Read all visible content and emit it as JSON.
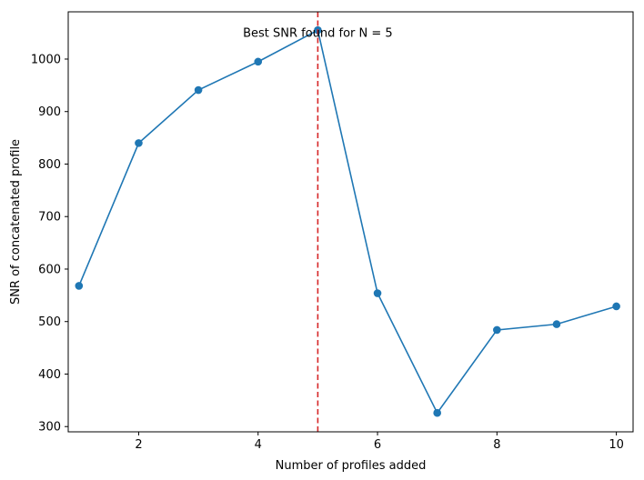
{
  "chart_data": {
    "type": "line",
    "x": [
      1,
      2,
      3,
      4,
      5,
      6,
      7,
      8,
      9,
      10
    ],
    "series": [
      {
        "values": [
          568,
          840,
          941,
          995,
          1055,
          554,
          326,
          484,
          495,
          529
        ],
        "color": "#1f77b4",
        "marker": "circle"
      }
    ],
    "xlabel": "Number of profiles added",
    "ylabel": "SNR of concatenated profile",
    "xlim": [
      0.82,
      10.28
    ],
    "ylim": [
      290,
      1090
    ],
    "xticks": [
      2,
      4,
      6,
      8,
      10
    ],
    "yticks": [
      300,
      400,
      500,
      600,
      700,
      800,
      900,
      1000
    ],
    "vline": {
      "x": 5,
      "color": "#d62728",
      "style": "dashed"
    },
    "annotation": {
      "text": "Best SNR found for N = 5",
      "x": 5,
      "y": 1042
    },
    "grid": false,
    "legend": "none"
  }
}
